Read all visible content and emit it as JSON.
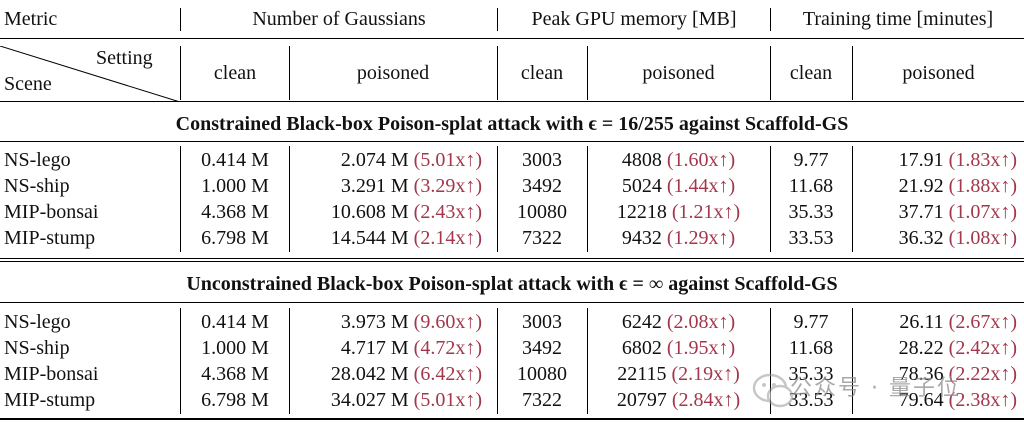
{
  "header": {
    "metric": "Metric",
    "groups": [
      "Number of Gaussians",
      "Peak GPU memory [MB]",
      "Training time [minutes]"
    ],
    "setting": "Setting",
    "scene": "Scene",
    "subcols": [
      "clean",
      "poisoned",
      "clean",
      "poisoned",
      "clean",
      "poisoned"
    ]
  },
  "sections": [
    {
      "title": "Constrained Black-box Poison-splat attack with ϵ = 16/255 against Scaffold-GS",
      "rows": [
        {
          "scene": "NS-lego",
          "g_clean": "0.414 M",
          "g_pois": "2.074 M",
          "g_ratio": "(5.01x↑)",
          "m_clean": "3003",
          "m_pois": "4808",
          "m_ratio": "(1.60x↑)",
          "t_clean": "9.77",
          "t_pois": "17.91",
          "t_ratio": "(1.83x↑)"
        },
        {
          "scene": "NS-ship",
          "g_clean": "1.000 M",
          "g_pois": "3.291 M",
          "g_ratio": "(3.29x↑)",
          "m_clean": "3492",
          "m_pois": "5024",
          "m_ratio": "(1.44x↑)",
          "t_clean": "11.68",
          "t_pois": "21.92",
          "t_ratio": "(1.88x↑)"
        },
        {
          "scene": "MIP-bonsai",
          "g_clean": "4.368 M",
          "g_pois": "10.608 M",
          "g_ratio": "(2.43x↑)",
          "m_clean": "10080",
          "m_pois": "12218",
          "m_ratio": "(1.21x↑)",
          "t_clean": "35.33",
          "t_pois": "37.71",
          "t_ratio": "(1.07x↑)"
        },
        {
          "scene": "MIP-stump",
          "g_clean": "6.798 M",
          "g_pois": "14.544 M",
          "g_ratio": "(2.14x↑)",
          "m_clean": "7322",
          "m_pois": "9432",
          "m_ratio": "(1.29x↑)",
          "t_clean": "33.53",
          "t_pois": "36.32",
          "t_ratio": "(1.08x↑)"
        }
      ]
    },
    {
      "title": "Unconstrained Black-box Poison-splat attack with ϵ = ∞ against Scaffold-GS",
      "rows": [
        {
          "scene": "NS-lego",
          "g_clean": "0.414 M",
          "g_pois": "3.973 M",
          "g_ratio": "(9.60x↑)",
          "m_clean": "3003",
          "m_pois": "6242",
          "m_ratio": "(2.08x↑)",
          "t_clean": "9.77",
          "t_pois": "26.11",
          "t_ratio": "(2.67x↑)"
        },
        {
          "scene": "NS-ship",
          "g_clean": "1.000 M",
          "g_pois": "4.717 M",
          "g_ratio": "(4.72x↑)",
          "m_clean": "3492",
          "m_pois": "6802",
          "m_ratio": "(1.95x↑)",
          "t_clean": "11.68",
          "t_pois": "28.22",
          "t_ratio": "(2.42x↑)"
        },
        {
          "scene": "MIP-bonsai",
          "g_clean": "4.368 M",
          "g_pois": "28.042 M",
          "g_ratio": "(6.42x↑)",
          "m_clean": "10080",
          "m_pois": "22115",
          "m_ratio": "(2.19x↑)",
          "t_clean": "35.33",
          "t_pois": "78.36",
          "t_ratio": "(2.22x↑)"
        },
        {
          "scene": "MIP-stump",
          "g_clean": "6.798 M",
          "g_pois": "34.027 M",
          "g_ratio": "(5.01x↑)",
          "m_clean": "7322",
          "m_pois": "20797",
          "m_ratio": "(2.84x↑)",
          "t_clean": "33.53",
          "t_pois": "79.64",
          "t_ratio": "(2.38x↑)"
        }
      ]
    }
  ],
  "watermark": {
    "text": "公众号 · 量子位",
    "icon": "wechat-icon"
  },
  "colors": {
    "ratio": "#a3374b",
    "rule": "#000000"
  }
}
